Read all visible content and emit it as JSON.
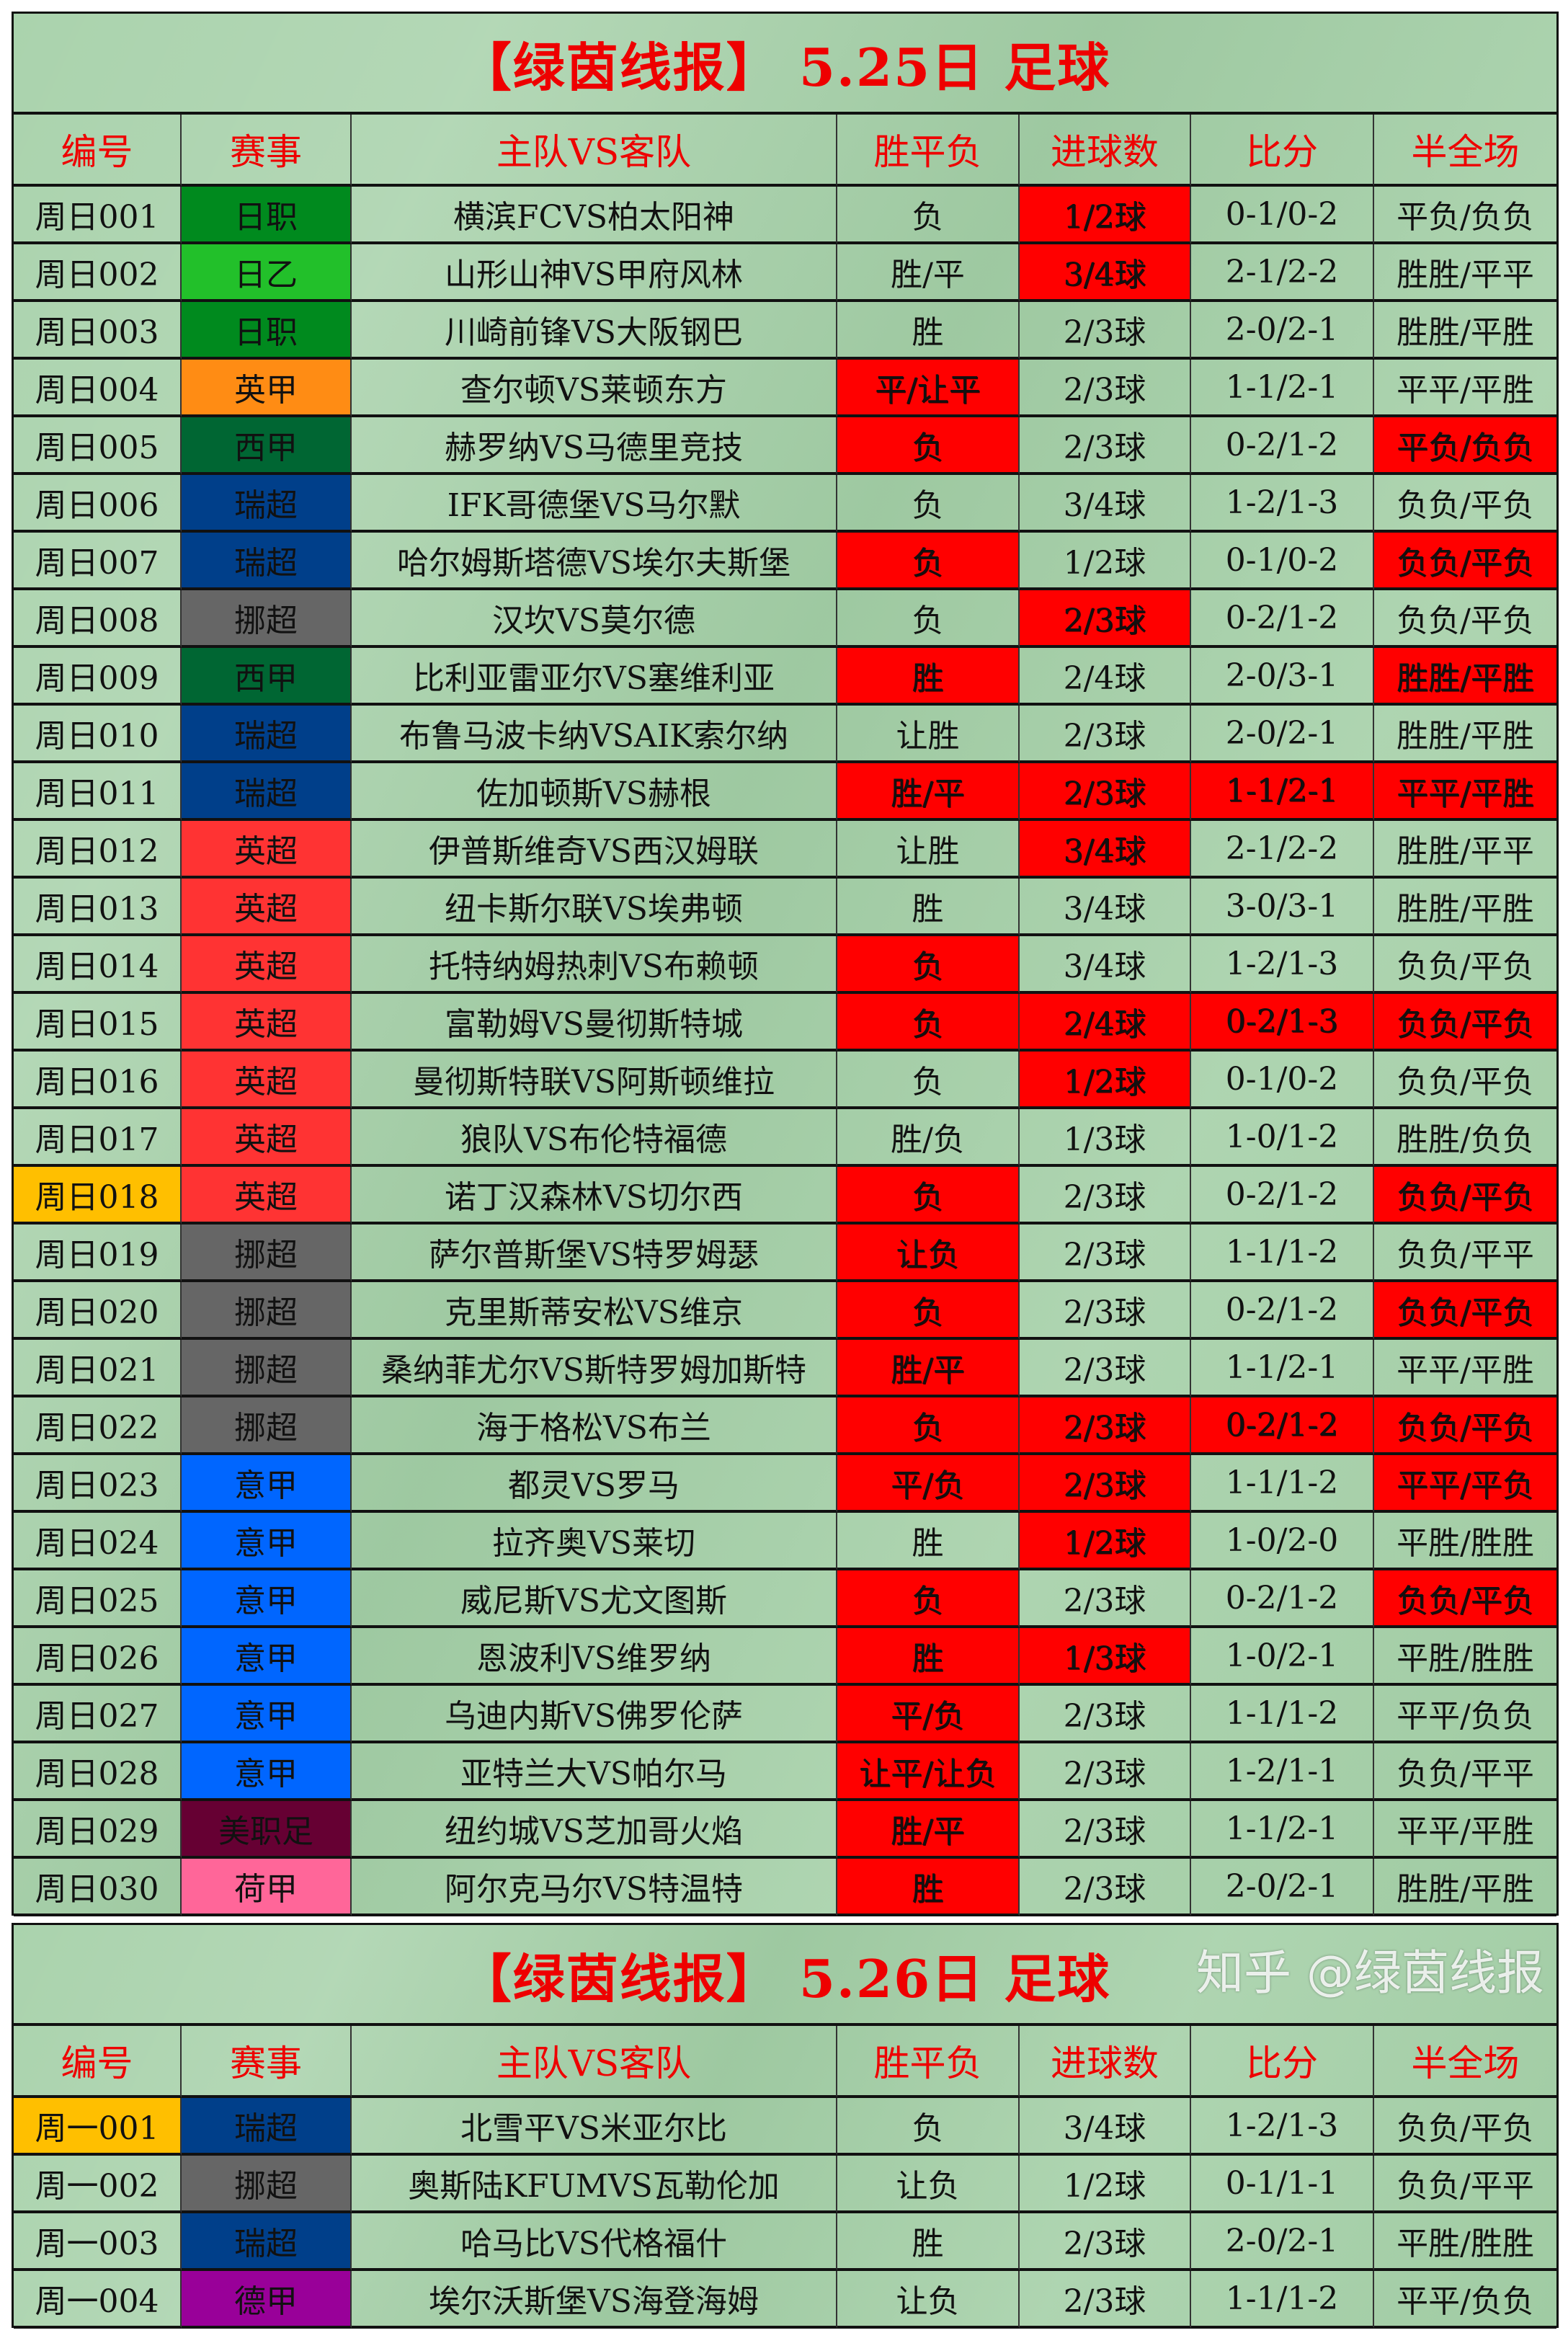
{
  "headers": [
    "编号",
    "赛事",
    "主队VS客队",
    "胜平负",
    "进球数",
    "比分",
    "半全场"
  ],
  "colors": {
    "highlight": "#ff0000",
    "id_highlight": "#ffbf00",
    "title": "#ee0000",
    "background": "#a3cfa6",
    "leagues": {
      "日职": "#008a1e",
      "日乙": "#22c02a",
      "英甲": "#ff8c14",
      "西甲": "#006633",
      "瑞超": "#003f8a",
      "挪超": "#666666",
      "英超": "#ff3333",
      "意甲": "#0066ff",
      "美职足": "#660033",
      "荷甲": "#ff6699",
      "德甲": "#990099"
    }
  },
  "sections": [
    {
      "title": "【绿茵线报】 5.25日 足球",
      "red_text": false,
      "rows": [
        {
          "cells": [
            "周日001",
            "日职",
            "横滨FCVS柏太阳神",
            "负",
            "1/2球",
            "0-1/0-2",
            "平负/负负"
          ],
          "hl": [
            4
          ]
        },
        {
          "cells": [
            "周日002",
            "日乙",
            "山形山神VS甲府风林",
            "胜/平",
            "3/4球",
            "2-1/2-2",
            "胜胜/平平"
          ],
          "hl": [
            4
          ]
        },
        {
          "cells": [
            "周日003",
            "日职",
            "川崎前锋VS大阪钢巴",
            "胜",
            "2/3球",
            "2-0/2-1",
            "胜胜/平胜"
          ],
          "hl": []
        },
        {
          "cells": [
            "周日004",
            "英甲",
            "查尔顿VS莱顿东方",
            "平/让平",
            "2/3球",
            "1-1/2-1",
            "平平/平胜"
          ],
          "hl": [
            3
          ]
        },
        {
          "cells": [
            "周日005",
            "西甲",
            "赫罗纳VS马德里竞技",
            "负",
            "2/3球",
            "0-2/1-2",
            "平负/负负"
          ],
          "hl": [
            3,
            6
          ]
        },
        {
          "cells": [
            "周日006",
            "瑞超",
            "IFK哥德堡VS马尔默",
            "负",
            "3/4球",
            "1-2/1-3",
            "负负/平负"
          ],
          "hl": []
        },
        {
          "cells": [
            "周日007",
            "瑞超",
            "哈尔姆斯塔德VS埃尔夫斯堡",
            "负",
            "1/2球",
            "0-1/0-2",
            "负负/平负"
          ],
          "hl": [
            3,
            6
          ]
        },
        {
          "cells": [
            "周日008",
            "挪超",
            "汉坎VS莫尔德",
            "负",
            "2/3球",
            "0-2/1-2",
            "负负/平负"
          ],
          "hl": [
            4
          ]
        },
        {
          "cells": [
            "周日009",
            "西甲",
            "比利亚雷亚尔VS塞维利亚",
            "胜",
            "2/4球",
            "2-0/3-1",
            "胜胜/平胜"
          ],
          "hl": [
            3,
            6
          ]
        },
        {
          "cells": [
            "周日010",
            "瑞超",
            "布鲁马波卡纳VSAIK索尔纳",
            "让胜",
            "2/3球",
            "2-0/2-1",
            "胜胜/平胜"
          ],
          "hl": []
        },
        {
          "cells": [
            "周日011",
            "瑞超",
            "佐加顿斯VS赫根",
            "胜/平",
            "2/3球",
            "1-1/2-1",
            "平平/平胜"
          ],
          "hl": [
            3,
            4,
            5,
            6
          ]
        },
        {
          "cells": [
            "周日012",
            "英超",
            "伊普斯维奇VS西汉姆联",
            "让胜",
            "3/4球",
            "2-1/2-2",
            "胜胜/平平"
          ],
          "hl": [
            4
          ]
        },
        {
          "cells": [
            "周日013",
            "英超",
            "纽卡斯尔联VS埃弗顿",
            "胜",
            "3/4球",
            "3-0/3-1",
            "胜胜/平胜"
          ],
          "hl": []
        },
        {
          "cells": [
            "周日014",
            "英超",
            "托特纳姆热刺VS布赖顿",
            "负",
            "3/4球",
            "1-2/1-3",
            "负负/平负"
          ],
          "hl": [
            3
          ]
        },
        {
          "cells": [
            "周日015",
            "英超",
            "富勒姆VS曼彻斯特城",
            "负",
            "2/4球",
            "0-2/1-3",
            "负负/平负"
          ],
          "hl": [
            3,
            4,
            5,
            6
          ]
        },
        {
          "cells": [
            "周日016",
            "英超",
            "曼彻斯特联VS阿斯顿维拉",
            "负",
            "1/2球",
            "0-1/0-2",
            "负负/平负"
          ],
          "hl": [
            4
          ]
        },
        {
          "cells": [
            "周日017",
            "英超",
            "狼队VS布伦特福德",
            "胜/负",
            "1/3球",
            "1-0/1-2",
            "胜胜/负负"
          ],
          "hl": []
        },
        {
          "cells": [
            "周日018",
            "英超",
            "诺丁汉森林VS切尔西",
            "负",
            "2/3球",
            "0-2/1-2",
            "负负/平负"
          ],
          "hl": [
            3,
            6
          ],
          "id_hl": true
        },
        {
          "cells": [
            "周日019",
            "挪超",
            "萨尔普斯堡VS特罗姆瑟",
            "让负",
            "2/3球",
            "1-1/1-2",
            "负负/平平"
          ],
          "hl": [
            3
          ]
        },
        {
          "cells": [
            "周日020",
            "挪超",
            "克里斯蒂安松VS维京",
            "负",
            "2/3球",
            "0-2/1-2",
            "负负/平负"
          ],
          "hl": [
            3,
            6
          ]
        },
        {
          "cells": [
            "周日021",
            "挪超",
            "桑纳菲尤尔VS斯特罗姆加斯特",
            "胜/平",
            "2/3球",
            "1-1/2-1",
            "平平/平胜"
          ],
          "hl": [
            3
          ]
        },
        {
          "cells": [
            "周日022",
            "挪超",
            "海于格松VS布兰",
            "负",
            "2/3球",
            "0-2/1-2",
            "负负/平负"
          ],
          "hl": [
            3,
            4,
            5,
            6
          ]
        },
        {
          "cells": [
            "周日023",
            "意甲",
            "都灵VS罗马",
            "平/负",
            "2/3球",
            "1-1/1-2",
            "平平/平负"
          ],
          "hl": [
            3,
            4,
            6
          ]
        },
        {
          "cells": [
            "周日024",
            "意甲",
            "拉齐奥VS莱切",
            "胜",
            "1/2球",
            "1-0/2-0",
            "平胜/胜胜"
          ],
          "hl": [
            4
          ]
        },
        {
          "cells": [
            "周日025",
            "意甲",
            "威尼斯VS尤文图斯",
            "负",
            "2/3球",
            "0-2/1-2",
            "负负/平负"
          ],
          "hl": [
            3,
            6
          ]
        },
        {
          "cells": [
            "周日026",
            "意甲",
            "恩波利VS维罗纳",
            "胜",
            "1/3球",
            "1-0/2-1",
            "平胜/胜胜"
          ],
          "hl": [
            3,
            4
          ]
        },
        {
          "cells": [
            "周日027",
            "意甲",
            "乌迪内斯VS佛罗伦萨",
            "平/负",
            "2/3球",
            "1-1/1-2",
            "平平/负负"
          ],
          "hl": [
            3
          ]
        },
        {
          "cells": [
            "周日028",
            "意甲",
            "亚特兰大VS帕尔马",
            "让平/让负",
            "2/3球",
            "1-2/1-1",
            "负负/平平"
          ],
          "hl": [
            3
          ]
        },
        {
          "cells": [
            "周日029",
            "美职足",
            "纽约城VS芝加哥火焰",
            "胜/平",
            "2/3球",
            "1-1/2-1",
            "平平/平胜"
          ],
          "hl": [
            3
          ]
        },
        {
          "cells": [
            "周日030",
            "荷甲",
            "阿尔克马尔VS特温特",
            "胜",
            "2/3球",
            "2-0/2-1",
            "胜胜/平胜"
          ],
          "hl": [
            3
          ]
        }
      ]
    },
    {
      "title": "【绿茵线报】 5.26日 足球",
      "red_text": true,
      "rows": [
        {
          "cells": [
            "周一001",
            "瑞超",
            "北雪平VS米亚尔比",
            "负",
            "3/4球",
            "1-2/1-3",
            "负负/平负"
          ],
          "hl": [],
          "id_hl": true
        },
        {
          "cells": [
            "周一002",
            "挪超",
            "奥斯陆KFUMVS瓦勒伦加",
            "让负",
            "1/2球",
            "0-1/1-1",
            "负负/平平"
          ],
          "hl": []
        },
        {
          "cells": [
            "周一003",
            "瑞超",
            "哈马比VS代格福什",
            "胜",
            "2/3球",
            "2-0/2-1",
            "平胜/胜胜"
          ],
          "hl": []
        },
        {
          "cells": [
            "周一004",
            "德甲",
            "埃尔沃斯堡VS海登海姆",
            "让负",
            "2/3球",
            "1-1/1-2",
            "平平/负负"
          ],
          "hl": []
        }
      ]
    }
  ],
  "watermark": "知乎 @绿茵线报"
}
